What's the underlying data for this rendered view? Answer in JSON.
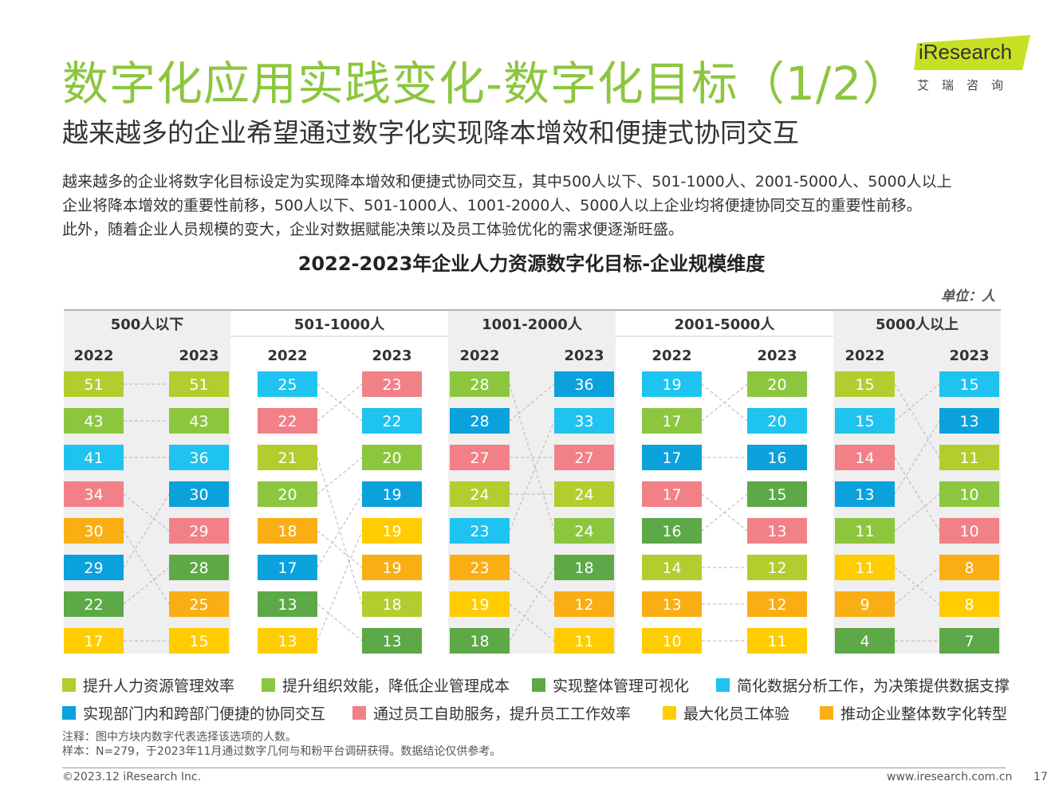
{
  "title": "数字化应用实践变化-数字化目标（1/2）",
  "subtitle": "越来越多的企业希望通过数字化实现降本增效和便捷式协同交互",
  "logo": {
    "brand": "iResearch",
    "chinese": "艾瑞咨询"
  },
  "description": [
    "越来越多的企业将数字化目标设定为实现降本增效和便捷式协同交互，其中500人以下、501-1000人、2001-5000人、5000人以上",
    "企业将降本增效的重要性前移，500人以下、501-1000人、1001-2000人、5000人以上企业均将便捷协同交互的重要性前移。",
    "此外，随着企业人员规模的变大，企业对数据赋能决策以及员工体验优化的需求便逐渐旺盛。"
  ],
  "unit_label": "单位：人",
  "legend": [
    {
      "label": "提升人力资源管理效率",
      "color": "#b4cc2e"
    },
    {
      "label": "提升组织效能，降低企业管理成本",
      "color": "#8cc63f"
    },
    {
      "label": "实现整体管理可视化",
      "color": "#5da847"
    },
    {
      "label": "简化数据分析工作，为决策提供数据支撑",
      "color": "#1ec3ef"
    },
    {
      "label": "实现部门内和跨部门便捷的协同交互",
      "color": "#0aa1dd"
    },
    {
      "label": "通过员工自助服务，提升员工工作效率",
      "color": "#f28087"
    },
    {
      "label": "最大化员工体验",
      "color": "#ffcc00"
    },
    {
      "label": "推动企业整体数字化转型",
      "color": "#f9ae14"
    }
  ],
  "notes": [
    "注释：图中方块内数字代表选择该选项的人数。",
    "样本：N=279，于2023年11月通过数字几何与和粉平台调研获得。数据结论仅供参考。"
  ],
  "footer": {
    "copyright": "©2023.12 iResearch Inc.",
    "website": "www.iresearch.com.cn",
    "page": "17"
  },
  "chart_data": {
    "type": "table",
    "title": "2022-2023年企业人力资源数字化目标-企业规模维度",
    "unit": "人",
    "categories": [
      "提升人力资源管理效率",
      "提升组织效能，降低企业管理成本",
      "实现整体管理可视化",
      "简化数据分析工作，为决策提供数据支撑",
      "实现部门内和跨部门便捷的协同交互",
      "通过员工自助服务，提升员工工作效率",
      "最大化员工体验",
      "推动企业整体数字化转型"
    ],
    "colors": [
      "#b4cc2e",
      "#8cc63f",
      "#5da847",
      "#1ec3ef",
      "#0aa1dd",
      "#f28087",
      "#ffcc00",
      "#f9ae14"
    ],
    "groups": [
      {
        "name": "500人以下",
        "y2022": {
          "label": "2022",
          "ranking": [
            [
              0,
              51
            ],
            [
              1,
              43
            ],
            [
              3,
              41
            ],
            [
              5,
              34
            ],
            [
              7,
              30
            ],
            [
              4,
              29
            ],
            [
              2,
              22
            ],
            [
              6,
              17
            ]
          ]
        },
        "y2023": {
          "label": "2023",
          "ranking": [
            [
              0,
              51
            ],
            [
              1,
              43
            ],
            [
              3,
              36
            ],
            [
              4,
              30
            ],
            [
              5,
              29
            ],
            [
              2,
              28
            ],
            [
              7,
              25
            ],
            [
              6,
              15
            ]
          ]
        }
      },
      {
        "name": "501-1000人",
        "y2022": {
          "label": "2022",
          "ranking": [
            [
              3,
              25
            ],
            [
              5,
              22
            ],
            [
              0,
              21
            ],
            [
              1,
              20
            ],
            [
              7,
              18
            ],
            [
              4,
              17
            ],
            [
              2,
              13
            ],
            [
              6,
              13
            ]
          ]
        },
        "y2023": {
          "label": "2023",
          "ranking": [
            [
              5,
              23
            ],
            [
              3,
              22
            ],
            [
              1,
              20
            ],
            [
              4,
              19
            ],
            [
              6,
              19
            ],
            [
              7,
              19
            ],
            [
              0,
              18
            ],
            [
              2,
              13
            ]
          ]
        }
      },
      {
        "name": "1001-2000人",
        "y2022": {
          "label": "2022",
          "ranking": [
            [
              1,
              28
            ],
            [
              4,
              28
            ],
            [
              5,
              27
            ],
            [
              0,
              24
            ],
            [
              3,
              23
            ],
            [
              7,
              23
            ],
            [
              6,
              19
            ],
            [
              2,
              18
            ]
          ]
        },
        "y2023": {
          "label": "2023",
          "ranking": [
            [
              4,
              36
            ],
            [
              3,
              33
            ],
            [
              5,
              27
            ],
            [
              0,
              24
            ],
            [
              1,
              24
            ],
            [
              2,
              18
            ],
            [
              7,
              12
            ],
            [
              6,
              11
            ]
          ]
        }
      },
      {
        "name": "2001-5000人",
        "y2022": {
          "label": "2022",
          "ranking": [
            [
              3,
              19
            ],
            [
              1,
              17
            ],
            [
              4,
              17
            ],
            [
              5,
              17
            ],
            [
              2,
              16
            ],
            [
              0,
              14
            ],
            [
              7,
              13
            ],
            [
              6,
              10
            ]
          ]
        },
        "y2023": {
          "label": "2023",
          "ranking": [
            [
              1,
              20
            ],
            [
              3,
              20
            ],
            [
              4,
              16
            ],
            [
              2,
              15
            ],
            [
              5,
              13
            ],
            [
              0,
              12
            ],
            [
              7,
              12
            ],
            [
              6,
              11
            ]
          ]
        }
      },
      {
        "name": "5000人以上",
        "y2022": {
          "label": "2022",
          "ranking": [
            [
              0,
              15
            ],
            [
              3,
              15
            ],
            [
              5,
              14
            ],
            [
              4,
              13
            ],
            [
              1,
              11
            ],
            [
              6,
              11
            ],
            [
              7,
              9
            ],
            [
              2,
              4
            ]
          ]
        },
        "y2023": {
          "label": "2023",
          "ranking": [
            [
              3,
              15
            ],
            [
              4,
              13
            ],
            [
              0,
              11
            ],
            [
              1,
              10
            ],
            [
              5,
              10
            ],
            [
              7,
              8
            ],
            [
              6,
              8
            ],
            [
              2,
              7
            ]
          ]
        }
      }
    ]
  }
}
